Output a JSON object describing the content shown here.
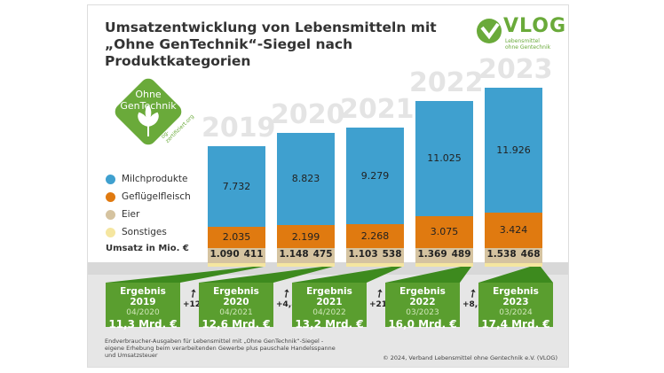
{
  "title_line1": "Umsatzentwicklung von Lebensmitteln mit",
  "title_line2": "„Ohne GenTechnik“-Siegel nach Produktkategorien",
  "logo": {
    "name": "VLOG",
    "sub1": "Lebensmittel",
    "sub2": "ohne Gentechnik"
  },
  "seal": {
    "line1": "Ohne",
    "line2": "GenTechnik",
    "url": "og-zertifiziert.org"
  },
  "colors": {
    "Milchprodukte": "#3fa0cf",
    "Geflügelfleisch": "#e07a10",
    "Eier": "#d5c3a0",
    "Sonstiges": "#f5e6a0",
    "green": "#5a9e2f"
  },
  "chart_data": {
    "type": "bar",
    "stacked": true,
    "categories": [
      "2019",
      "2020",
      "2021",
      "2022",
      "2023"
    ],
    "ylabel": "Umsatz in Mio. €",
    "series": [
      {
        "name": "Milchprodukte",
        "values": [
          "7.732",
          "8.823",
          "9.279",
          "11.025",
          "11.926"
        ]
      },
      {
        "name": "Geflügelfleisch",
        "values": [
          "2.035",
          "2.199",
          "2.268",
          "3.075",
          "3.424"
        ]
      },
      {
        "name": "Eier",
        "values": [
          "1.090",
          "1.148",
          "1.103",
          "1.369",
          "1.538"
        ]
      },
      {
        "name": "Sonstiges",
        "values": [
          "411",
          "475",
          "538",
          "489",
          "468"
        ]
      }
    ],
    "legend_position": "left"
  },
  "results": [
    {
      "title": "Ergebnis 2019",
      "date": "04/2020",
      "value": "11,3 Mrd. €"
    },
    {
      "title": "Ergebnis 2020",
      "date": "04/2021",
      "value": "12,6 Mrd. €"
    },
    {
      "title": "Ergebnis 2021",
      "date": "04/2022",
      "value": "13,2 Mrd. €"
    },
    {
      "title": "Ergebnis 2022",
      "date": "03/2023",
      "value": "16,0 Mrd. €"
    },
    {
      "title": "Ergebnis 2023",
      "date": "03/2024",
      "value": "17,4 Mrd. €"
    }
  ],
  "changes": [
    "+12%",
    "+4,8%",
    "+21%",
    "+8,8%"
  ],
  "footnote": "Endverbraucher-Ausgaben für Lebensmittel mit „Ohne GenTechnik“-Siegel - eigene Erhebung beim verarbeitenden Gewerbe plus pauschale Handelsspanne und Umsatzsteuer",
  "copyright": "© 2024, Verband Lebensmittel ohne Gentechnik e.V. (VLOG)"
}
